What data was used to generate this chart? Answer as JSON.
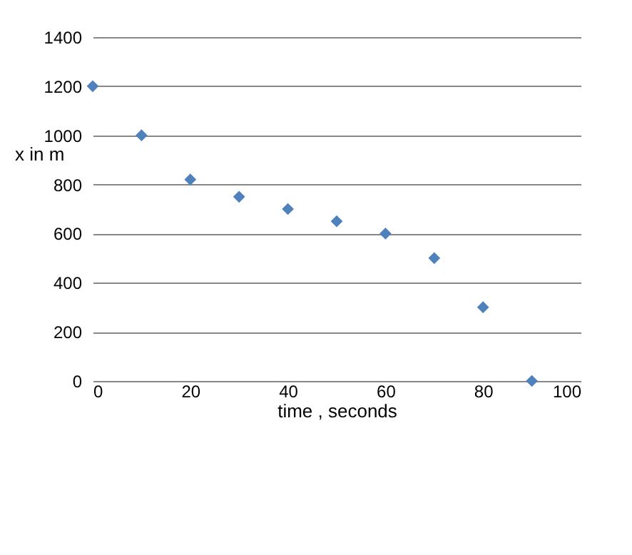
{
  "chart_data": {
    "type": "scatter",
    "xlabel": "time , seconds",
    "ylabel": "x in m",
    "x": [
      0,
      10,
      20,
      30,
      40,
      50,
      60,
      70,
      80,
      90
    ],
    "series": [
      {
        "color": "#4f81bd",
        "values": [
          1200,
          1000,
          820,
          750,
          700,
          650,
          600,
          500,
          300,
          0
        ]
      }
    ],
    "xlim": [
      0,
      100
    ],
    "xticks": [
      0,
      20,
      40,
      60,
      80,
      100
    ],
    "ylim": [
      0,
      1400
    ],
    "yticks": [
      0,
      200,
      400,
      600,
      800,
      1000,
      1200,
      1400
    ],
    "grid": "y",
    "marker": "diamond"
  }
}
